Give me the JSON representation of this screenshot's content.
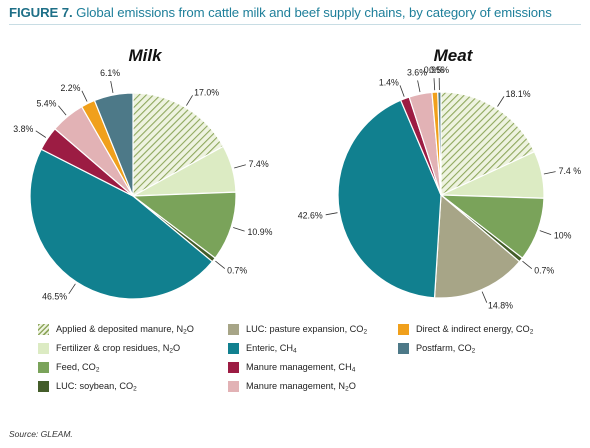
{
  "title": {
    "label": "FIGURE 7.",
    "text": "Global emissions from cattle milk and beef supply chains, by category of emissions"
  },
  "source": "Source: GLEAM.",
  "categories": [
    {
      "id": "applied",
      "name": "Applied & deposited manure, N",
      "sub": "2",
      "tail": "O",
      "color": "#c9d8a8",
      "hatch": true
    },
    {
      "id": "fertilizer",
      "name": "Fertilizer & crop residues, N",
      "sub": "2",
      "tail": "O",
      "color": "#dcebc3",
      "hatch": false
    },
    {
      "id": "feed",
      "name": "Feed, CO",
      "sub": "2",
      "tail": "",
      "color": "#7aa35a",
      "hatch": false
    },
    {
      "id": "luc-soybean",
      "name": "LUC: soybean, CO",
      "sub": "2",
      "tail": "",
      "color": "#445d2a",
      "hatch": false
    },
    {
      "id": "luc-pasture",
      "name": "LUC: pasture expansion, CO",
      "sub": "2",
      "tail": "",
      "color": "#a7a587",
      "hatch": false
    },
    {
      "id": "enteric",
      "name": "Enteric, CH",
      "sub": "4",
      "tail": "",
      "color": "#11808f",
      "hatch": false
    },
    {
      "id": "manure-ch4",
      "name": "Manure management, CH",
      "sub": "4",
      "tail": "",
      "color": "#9c1c43",
      "hatch": false
    },
    {
      "id": "manure-n2o",
      "name": "Manure management, N",
      "sub": "2",
      "tail": "O",
      "color": "#e2b2b5",
      "hatch": false
    },
    {
      "id": "energy",
      "name": "Direct & indirect energy, CO",
      "sub": "2",
      "tail": "",
      "color": "#f0a01c",
      "hatch": false
    },
    {
      "id": "postfarm",
      "name": "Postfarm, CO",
      "sub": "2",
      "tail": "",
      "color": "#4d7988",
      "hatch": false
    }
  ],
  "chart_data": [
    {
      "type": "pie",
      "title": "Milk",
      "slices": [
        {
          "category": "applied",
          "value": 17.0,
          "label": "17.0%"
        },
        {
          "category": "fertilizer",
          "value": 7.4,
          "label": "7.4%"
        },
        {
          "category": "feed",
          "value": 10.9,
          "label": "10.9%"
        },
        {
          "category": "luc-soybean",
          "value": 0.7,
          "label": "0.7%"
        },
        {
          "category": "enteric",
          "value": 46.5,
          "label": "46.5%"
        },
        {
          "category": "manure-ch4",
          "value": 3.8,
          "label": "3.8%"
        },
        {
          "category": "manure-n2o",
          "value": 5.4,
          "label": "5.4%"
        },
        {
          "category": "energy",
          "value": 2.2,
          "label": "2.2%"
        },
        {
          "category": "postfarm",
          "value": 6.1,
          "label": "6.1%"
        }
      ]
    },
    {
      "type": "pie",
      "title": "Meat",
      "slices": [
        {
          "category": "applied",
          "value": 18.1,
          "label": "18.1%"
        },
        {
          "category": "fertilizer",
          "value": 7.4,
          "label": "7.4 %"
        },
        {
          "category": "feed",
          "value": 10,
          "label": "10%"
        },
        {
          "category": "luc-soybean",
          "value": 0.7,
          "label": "0.7%"
        },
        {
          "category": "luc-pasture",
          "value": 14.8,
          "label": "14.8%"
        },
        {
          "category": "enteric",
          "value": 42.6,
          "label": "42.6%"
        },
        {
          "category": "manure-ch4",
          "value": 1.4,
          "label": "1.4%"
        },
        {
          "category": "manure-n2o",
          "value": 3.6,
          "label": "3.6%"
        },
        {
          "category": "energy",
          "value": 0.9,
          "label": "0.9%"
        },
        {
          "category": "postfarm",
          "value": 0.5,
          "label": "0.5%"
        }
      ]
    }
  ]
}
